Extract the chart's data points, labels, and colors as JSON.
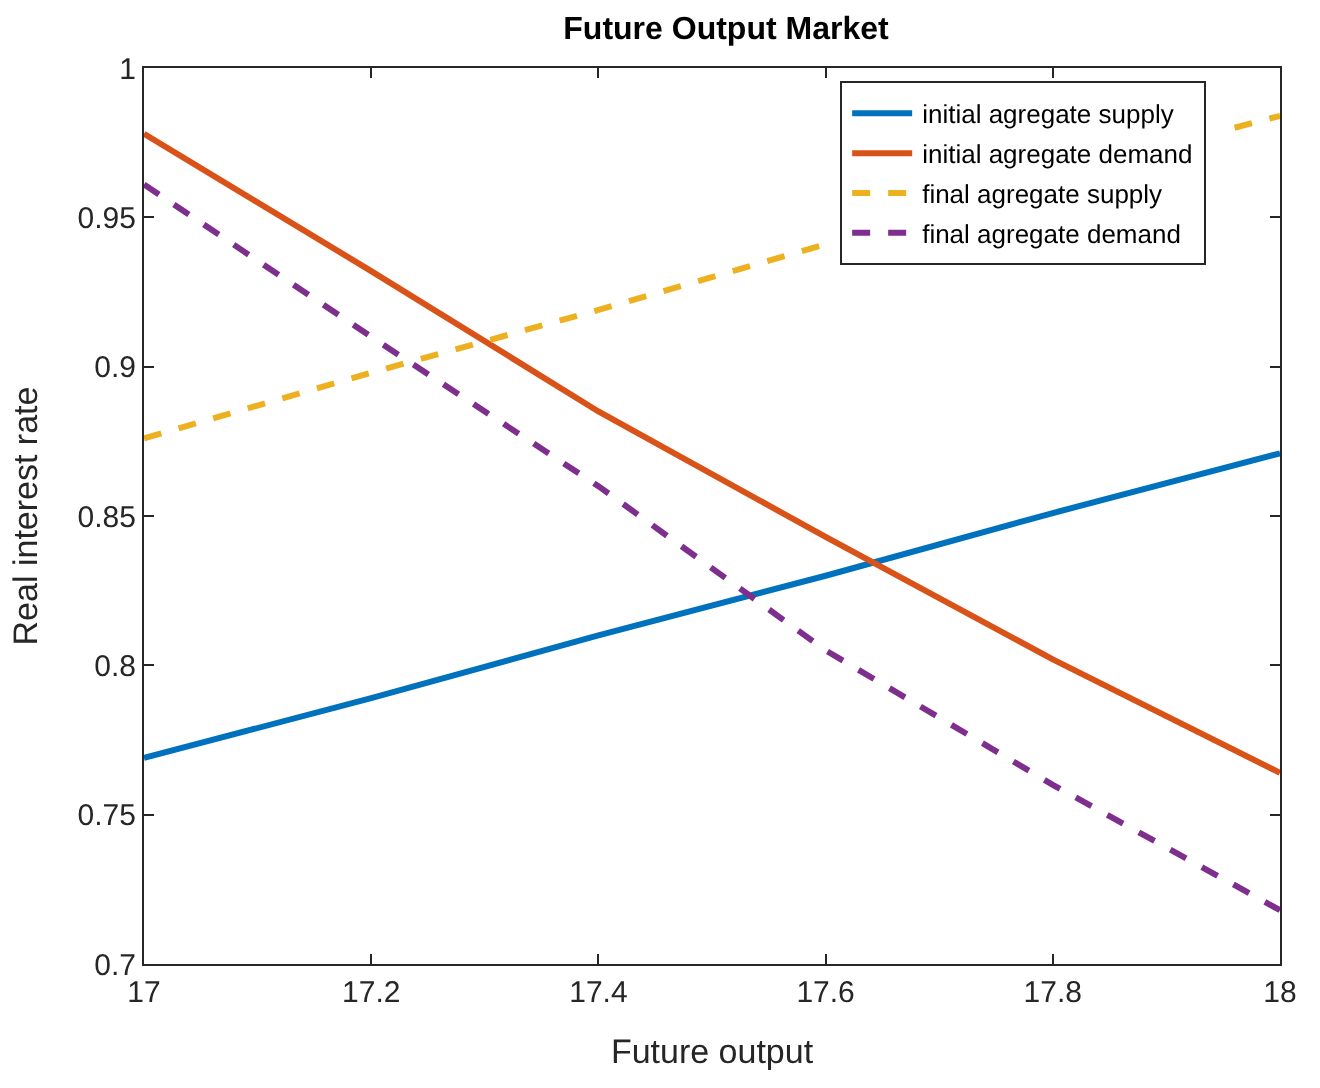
{
  "chart_data": {
    "type": "line",
    "title": "Future Output Market",
    "xlabel": "Future output",
    "ylabel": "Real interest rate",
    "x": [
      17,
      17.2,
      17.4,
      17.6,
      17.8,
      18
    ],
    "series": [
      {
        "name": "initial agregate supply",
        "color": "#0072bd",
        "values": [
          0.769,
          0.789,
          0.81,
          0.83,
          0.851,
          0.871
        ]
      },
      {
        "name": "initial agregate demand",
        "color": "#d95319",
        "values": [
          0.978,
          0.932,
          0.885,
          0.843,
          0.802,
          0.764
        ]
      },
      {
        "name": "final agregate supply",
        "color": "#edb120",
        "line_style": "dashed",
        "x": [
          17,
          17.2,
          17.4,
          17.6,
          17.8,
          17.96,
          18
        ],
        "values": [
          0.876,
          0.898,
          0.919,
          0.941,
          null,
          0.98,
          0.984
        ]
      },
      {
        "name": "final agregate demand",
        "color": "#7e2f8e",
        "line_style": "dashed",
        "values": [
          0.961,
          0.91,
          0.86,
          0.805,
          0.76,
          0.718
        ]
      }
    ],
    "xlim": [
      17,
      18
    ],
    "xticks": [
      17,
      17.2,
      17.4,
      17.6,
      17.8,
      18
    ],
    "ylim": [
      0.7,
      1
    ],
    "yticks": [
      0.7,
      0.75,
      0.8,
      0.85,
      0.9,
      0.95,
      1
    ],
    "legend": "top right",
    "line_style": "solid"
  }
}
